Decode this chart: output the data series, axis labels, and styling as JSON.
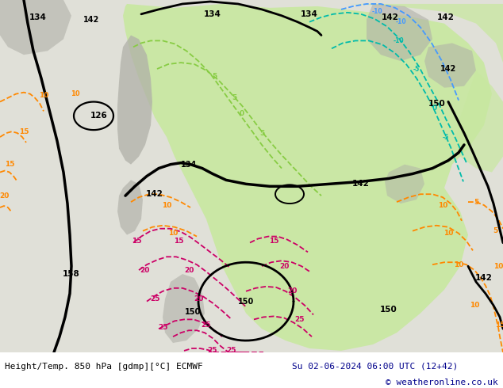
{
  "title_left": "Height/Temp. 850 hPa [gdmp][°C] ECMWF",
  "title_right": "Su 02-06-2024 06:00 UTC (12+42)",
  "copyright": "© weatheronline.co.uk",
  "bg_color": "#ffffff",
  "text_color": "#00008b",
  "label_color": "#000000",
  "fig_width": 6.34,
  "fig_height": 4.9,
  "dpi": 100,
  "font_size_main": 8.0,
  "font_size_copy": 8.0,
  "map_bg": "#e0e0d8",
  "green_color": "#c8e8a0",
  "gray_color": "#b0b0a8",
  "orange_color": "#FF8800",
  "magenta_color": "#CC0066",
  "cyan_color": "#00AACC",
  "lime_color": "#88CC44",
  "teal_color": "#00BBAA"
}
